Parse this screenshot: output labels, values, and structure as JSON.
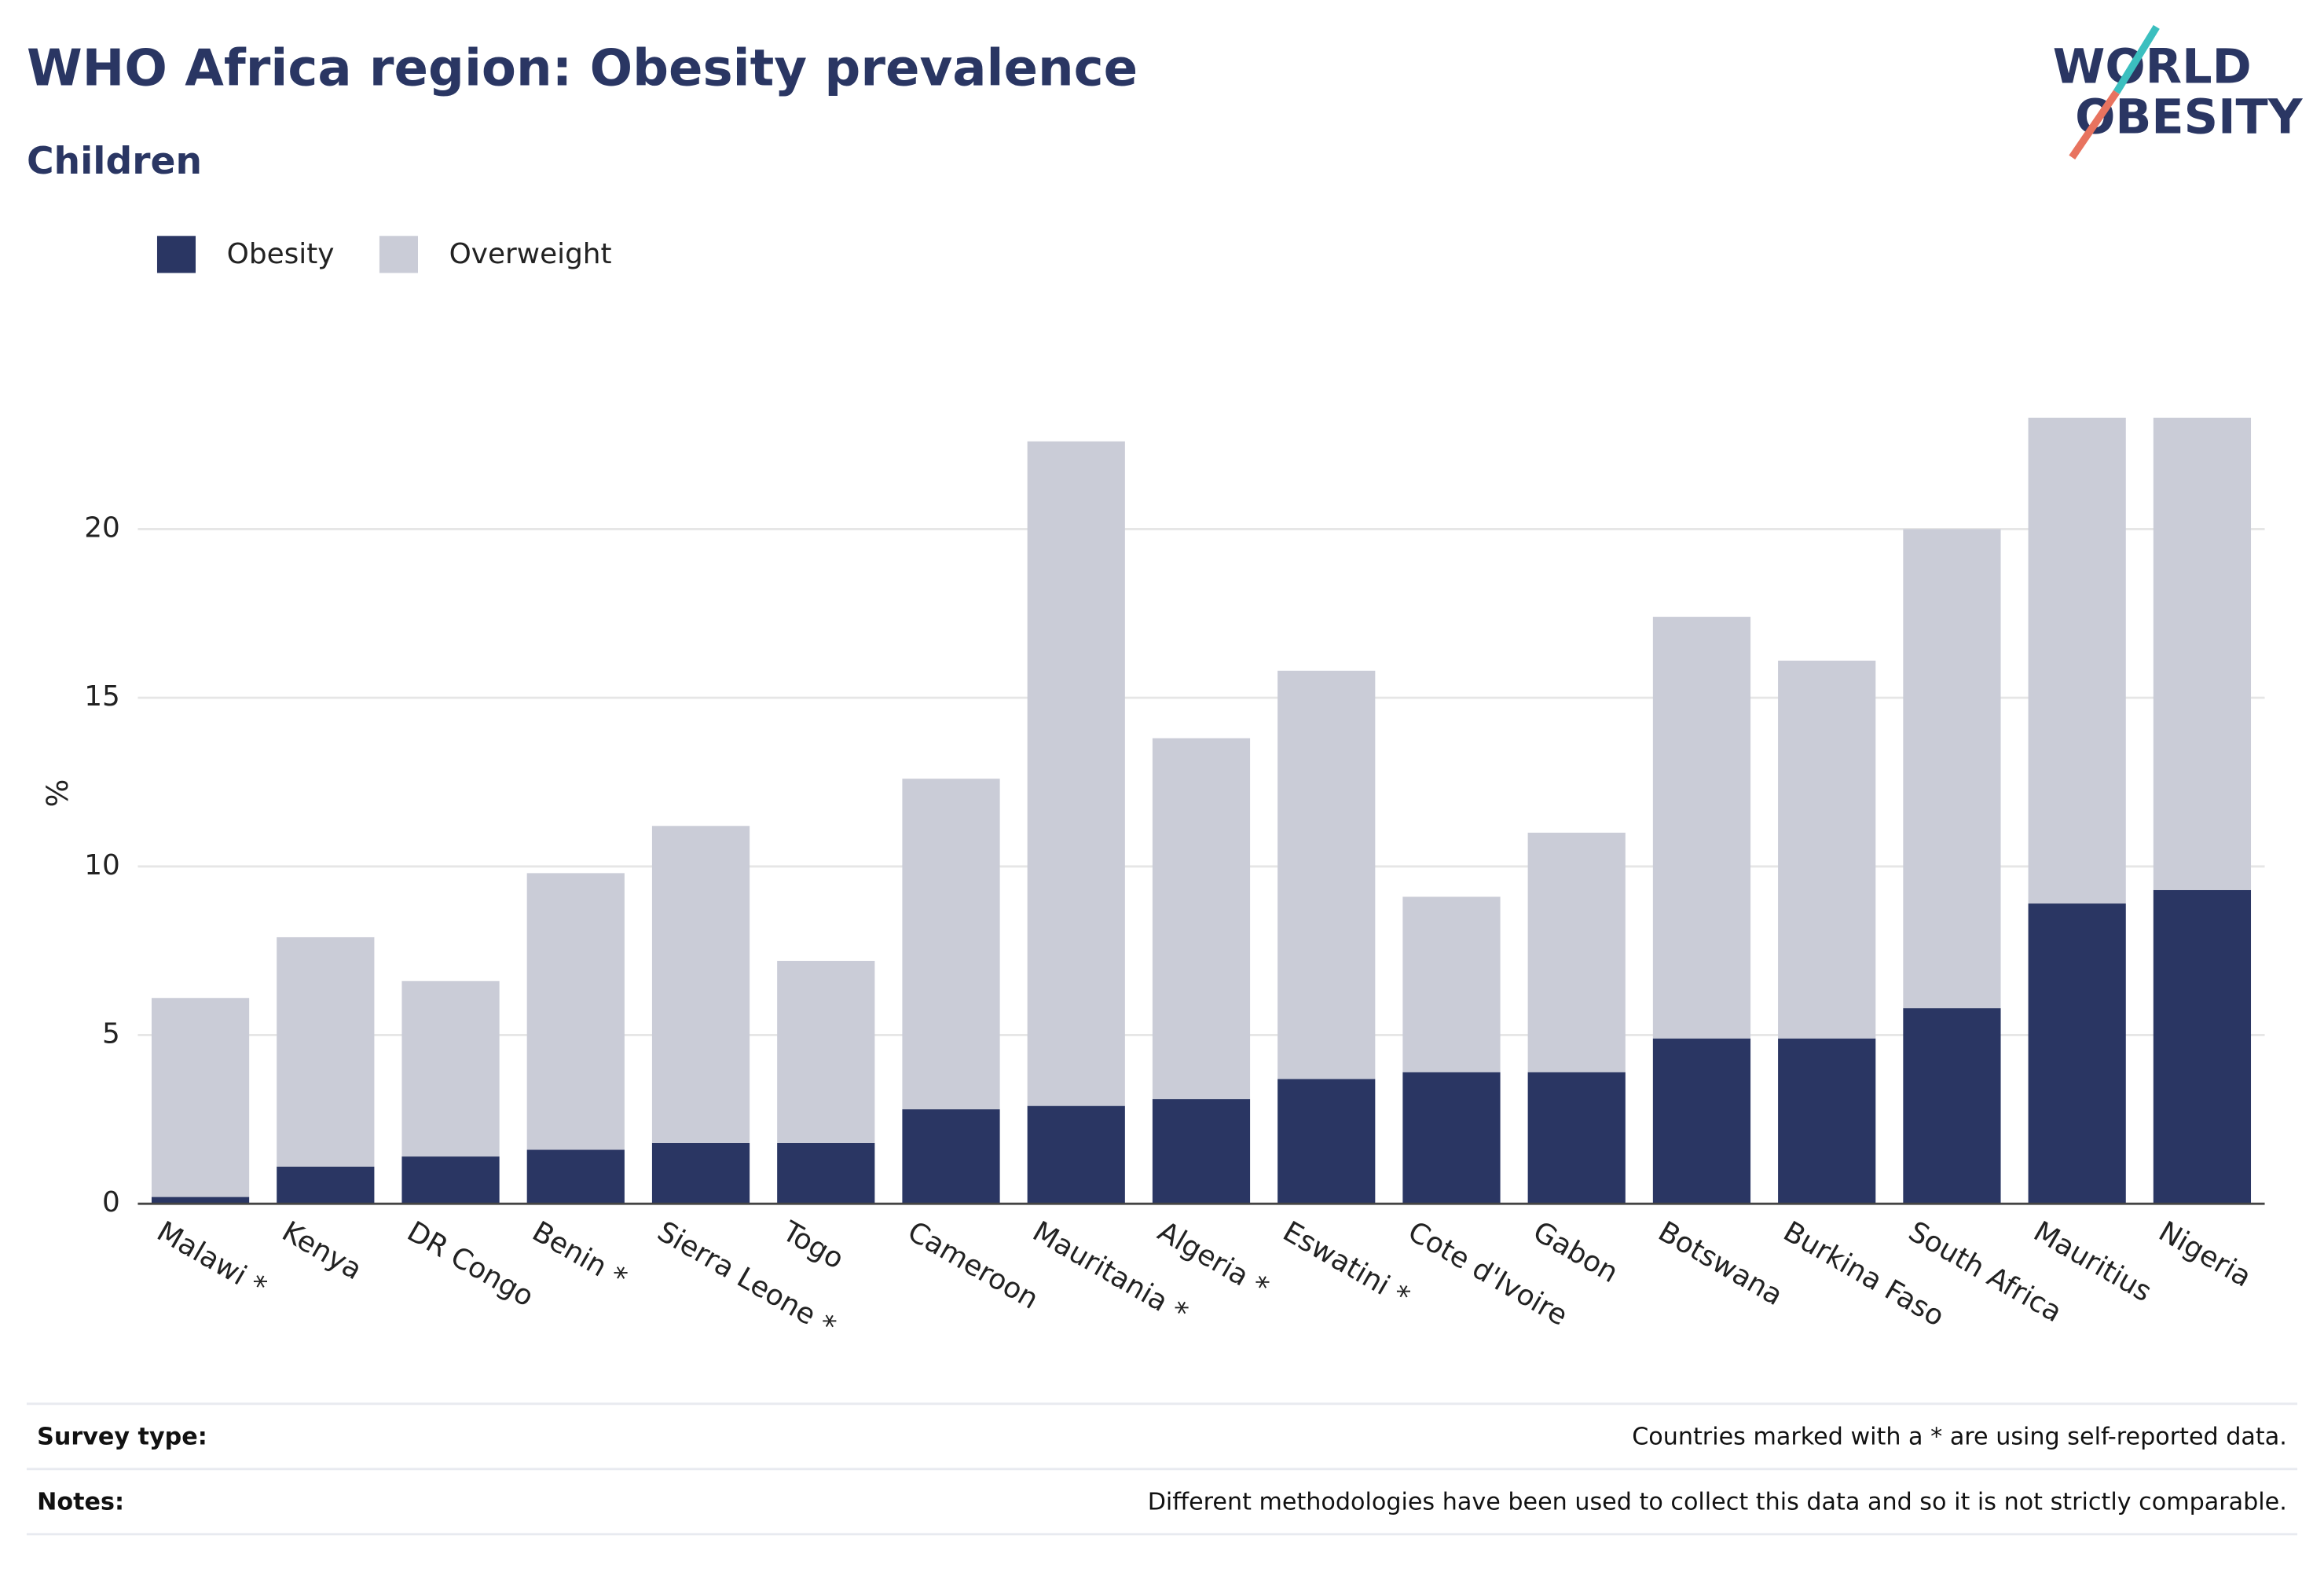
{
  "chart_data": {
    "type": "stacked_bar",
    "title": "WHO Africa region: Obesity prevalence",
    "subtitle": "Children",
    "logo": [
      "WORLD",
      "OBESITY"
    ],
    "ylabel": "%",
    "categories": [
      "Malawi *",
      "Kenya",
      "DR Congo",
      "Benin *",
      "Sierra Leone *",
      "Togo",
      "Cameroon",
      "Mauritania *",
      "Algeria *",
      "Eswatini *",
      "Cote d'Ivoire",
      "Gabon",
      "Botswana",
      "Burkina Faso",
      "South Africa",
      "Mauritius",
      "Nigeria"
    ],
    "series": [
      {
        "name": "Obesity",
        "color": "#2a3663",
        "values": [
          0.2,
          1.1,
          1.4,
          1.6,
          1.8,
          1.8,
          2.8,
          2.9,
          3.1,
          3.7,
          3.9,
          3.9,
          4.9,
          4.9,
          5.8,
          8.9,
          9.3
        ]
      },
      {
        "name": "Overweight",
        "color": "#caccd7",
        "values": [
          5.9,
          6.8,
          5.2,
          8.2,
          9.4,
          5.4,
          9.8,
          19.7,
          10.7,
          12.1,
          5.2,
          7.1,
          12.5,
          11.2,
          14.2,
          14.4,
          14.0
        ]
      }
    ],
    "ylim": [
      0,
      25
    ],
    "yticks": [
      0,
      5,
      10,
      15,
      20
    ],
    "grid": true,
    "footer": [
      {
        "label": "Survey type:",
        "text": "Countries marked with a * are using self-reported data."
      },
      {
        "label": "Notes:",
        "text": "Different methodologies have been used to collect this data and so it is not strictly comparable."
      }
    ]
  }
}
